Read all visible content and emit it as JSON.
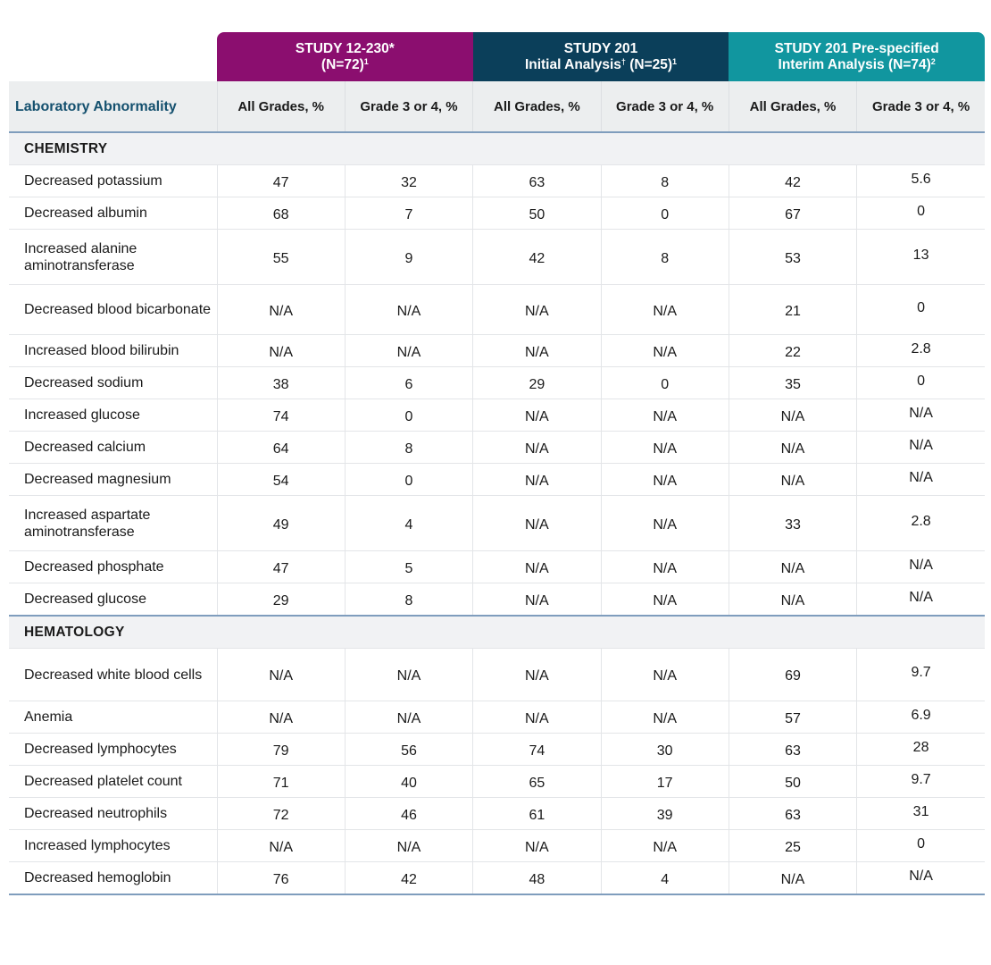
{
  "table": {
    "label_header": "Laboratory Abnormality",
    "studies": [
      {
        "title": "STUDY 12-230*",
        "subtitle": "(N=72)",
        "sup": "1",
        "color": "#8b0e6f"
      },
      {
        "title": "STUDY 201",
        "subtitle": "Initial Analysis",
        "subtitle_sup": "†",
        "subtitle_rest": " (N=25)",
        "sup": "1",
        "color": "#0b3f5a"
      },
      {
        "title": "STUDY 201 Pre-specified",
        "subtitle": "Interim Analysis (N=74)",
        "sup": "2",
        "color": "#11969f"
      }
    ],
    "subheaders": [
      "All Grades, %",
      "Grade 3 or 4, %",
      "All Grades, %",
      "Grade 3 or 4, %",
      "All Grades, %",
      "Grade 3 or 4, %"
    ],
    "sections": [
      {
        "name": "CHEMISTRY",
        "rows": [
          {
            "label": "Decreased potassium",
            "values": [
              "47",
              "32",
              "63",
              "8",
              "42",
              "5.6"
            ]
          },
          {
            "label": "Decreased albumin",
            "values": [
              "68",
              "7",
              "50",
              "0",
              "67",
              "0"
            ]
          },
          {
            "label": "Increased alanine aminotransferase",
            "values": [
              "55",
              "9",
              "42",
              "8",
              "53",
              "13"
            ]
          },
          {
            "label": "Decreased blood bicarbonate",
            "values": [
              "N/A",
              "N/A",
              "N/A",
              "N/A",
              "21",
              "0"
            ]
          },
          {
            "label": "Increased blood bilirubin",
            "values": [
              "N/A",
              "N/A",
              "N/A",
              "N/A",
              "22",
              "2.8"
            ]
          },
          {
            "label": "Decreased sodium",
            "values": [
              "38",
              "6",
              "29",
              "0",
              "35",
              "0"
            ]
          },
          {
            "label": "Increased glucose",
            "values": [
              "74",
              "0",
              "N/A",
              "N/A",
              "N/A",
              "N/A"
            ]
          },
          {
            "label": "Decreased calcium",
            "values": [
              "64",
              "8",
              "N/A",
              "N/A",
              "N/A",
              "N/A"
            ]
          },
          {
            "label": "Decreased magnesium",
            "values": [
              "54",
              "0",
              "N/A",
              "N/A",
              "N/A",
              "N/A"
            ]
          },
          {
            "label": "Increased aspartate aminotransferase",
            "values": [
              "49",
              "4",
              "N/A",
              "N/A",
              "33",
              "2.8"
            ]
          },
          {
            "label": "Decreased phosphate",
            "values": [
              "47",
              "5",
              "N/A",
              "N/A",
              "N/A",
              "N/A"
            ]
          },
          {
            "label": "Decreased glucose",
            "values": [
              "29",
              "8",
              "N/A",
              "N/A",
              "N/A",
              "N/A"
            ]
          }
        ]
      },
      {
        "name": "HEMATOLOGY",
        "rows": [
          {
            "label": "Decreased white blood cells",
            "values": [
              "N/A",
              "N/A",
              "N/A",
              "N/A",
              "69",
              "9.7"
            ]
          },
          {
            "label": "Anemia",
            "values": [
              "N/A",
              "N/A",
              "N/A",
              "N/A",
              "57",
              "6.9"
            ]
          },
          {
            "label": "Decreased lymphocytes",
            "values": [
              "79",
              "56",
              "74",
              "30",
              "63",
              "28"
            ]
          },
          {
            "label": "Decreased platelet count",
            "values": [
              "71",
              "40",
              "65",
              "17",
              "50",
              "9.7"
            ]
          },
          {
            "label": "Decreased neutrophils",
            "values": [
              "72",
              "46",
              "61",
              "39",
              "63",
              "31"
            ]
          },
          {
            "label": "Increased lymphocytes",
            "values": [
              "N/A",
              "N/A",
              "N/A",
              "N/A",
              "25",
              "0"
            ]
          },
          {
            "label": "Decreased hemoglobin",
            "values": [
              "76",
              "42",
              "48",
              "4",
              "N/A",
              "N/A"
            ]
          }
        ]
      }
    ]
  }
}
